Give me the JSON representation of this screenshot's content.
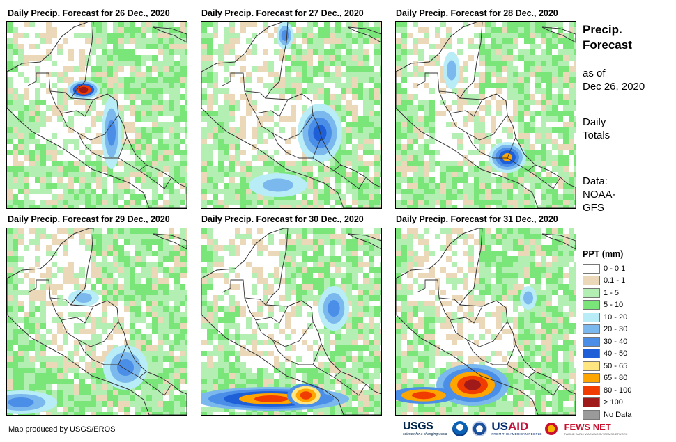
{
  "panels": [
    {
      "title": "Daily Precip. Forecast for 26 Dec., 2020"
    },
    {
      "title": "Daily Precip. Forecast for 27 Dec., 2020"
    },
    {
      "title": "Daily Precip. Forecast for 28 Dec., 2020"
    },
    {
      "title": "Daily Precip. Forecast for 29 Dec., 2020"
    },
    {
      "title": "Daily Precip. Forecast for 30 Dec., 2020"
    },
    {
      "title": "Daily Precip. Forecast for 31 Dec., 2020"
    }
  ],
  "side": {
    "title_line1": "Precip.",
    "title_line2": "Forecast",
    "asof_line1": "as of",
    "asof_line2": "Dec 26, 2020",
    "totals_line1": "Daily",
    "totals_line2": "Totals",
    "data_line1": "Data:",
    "data_line2": "NOAA-",
    "data_line3": "GFS"
  },
  "legend": {
    "title": "PPT (mm)",
    "items": [
      {
        "label": "0 - 0.1",
        "color": "#ffffff"
      },
      {
        "label": "0.1 - 1",
        "color": "#ead8b8"
      },
      {
        "label": "1 - 5",
        "color": "#b3efb3"
      },
      {
        "label": "5 - 10",
        "color": "#7ae67a"
      },
      {
        "label": "10 - 20",
        "color": "#b8ecf6"
      },
      {
        "label": "20 - 30",
        "color": "#7ab8ee"
      },
      {
        "label": "30 - 40",
        "color": "#4a8ee8"
      },
      {
        "label": "40 - 50",
        "color": "#1e5fd8"
      },
      {
        "label": "50 - 65",
        "color": "#ffe680"
      },
      {
        "label": "65 - 80",
        "color": "#ffa500"
      },
      {
        "label": "80 - 100",
        "color": "#f03c00"
      },
      {
        "label": "> 100",
        "color": "#a01a1a"
      },
      {
        "label": "No Data",
        "color": "#9a9a9a"
      }
    ]
  },
  "credit": "Map produced by USGS/EROS",
  "logos": {
    "usgs": "USGS",
    "usgs_tag": "science for a changing world",
    "usaid_a": "US",
    "usaid_b": "AID",
    "usaid_tag": "FROM THE AMERICAN PEOPLE",
    "fews": "FEWS NET",
    "fews_tag": "FAMINE EARLY WARNING SYSTEMS NETWORK"
  }
}
